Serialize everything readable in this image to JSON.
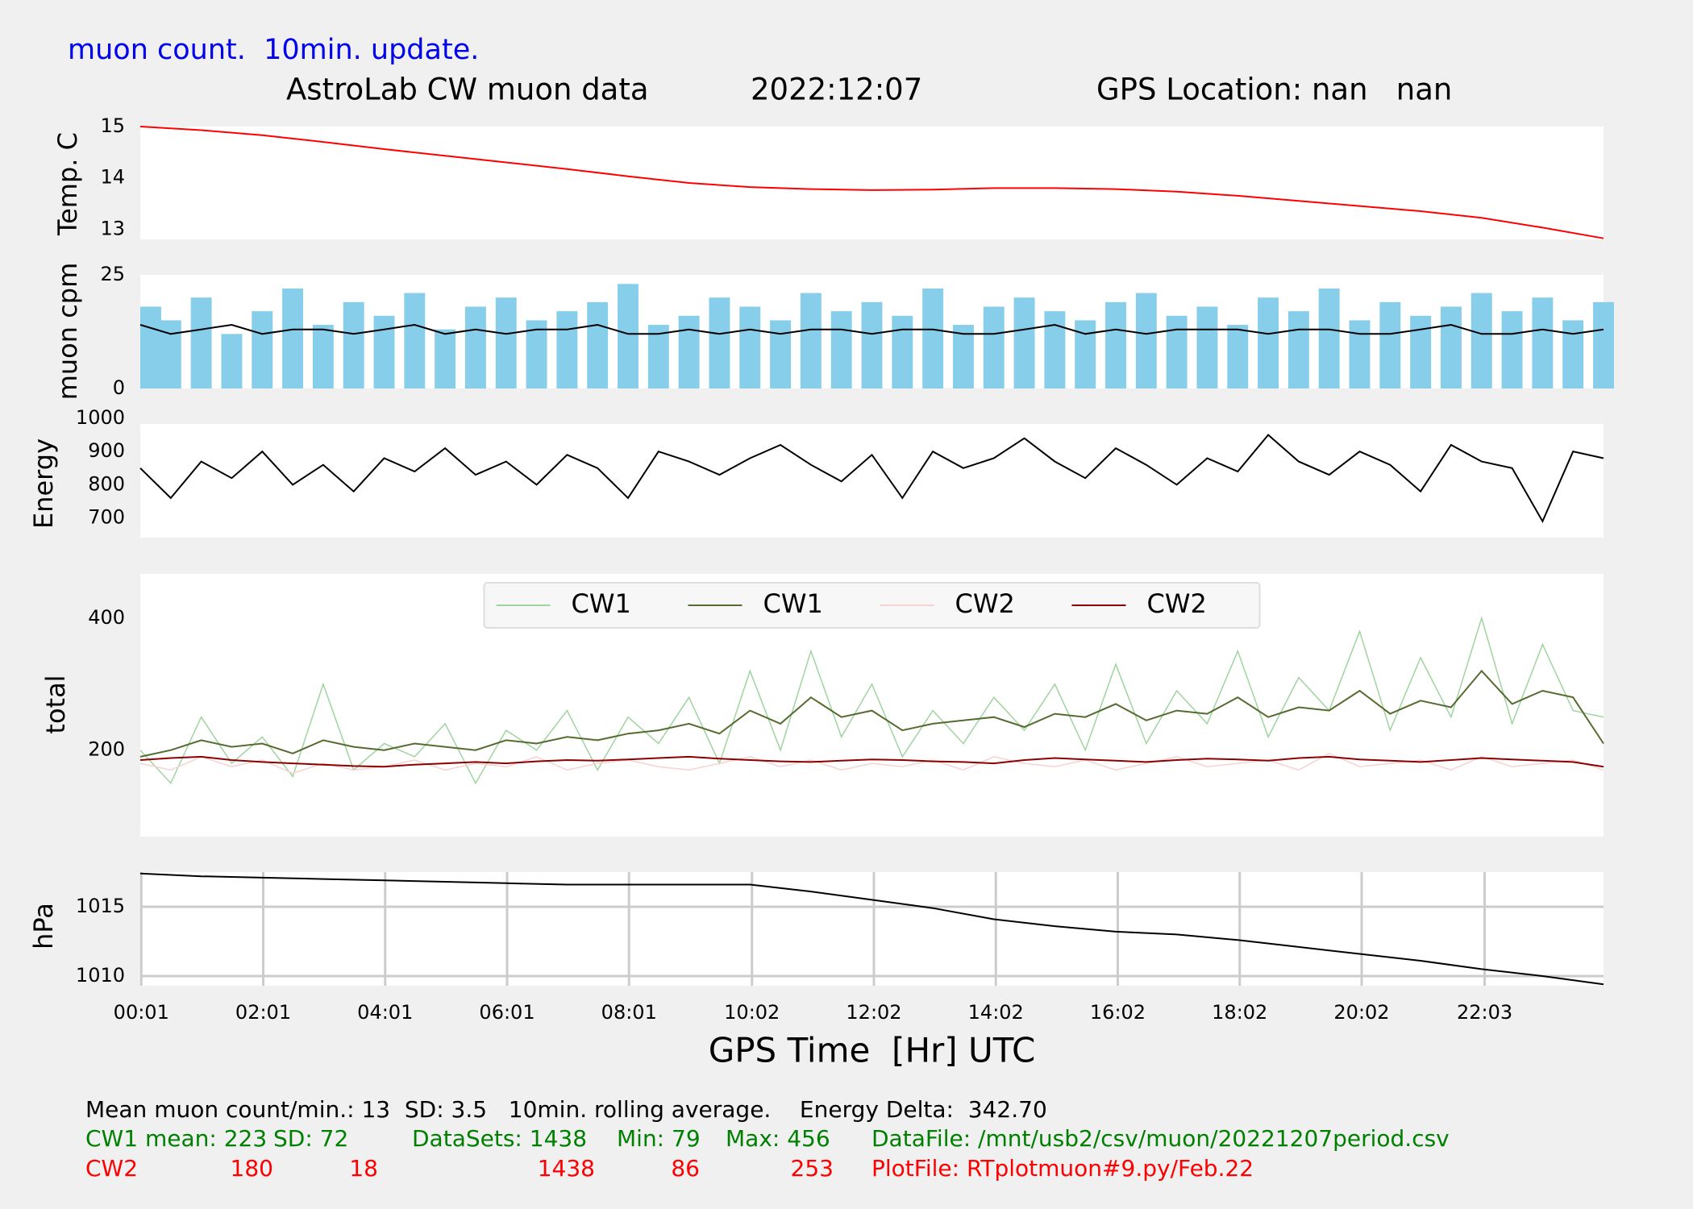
{
  "header": {
    "note": "muon count.  10min. update.",
    "title": "AstroLab CW muon data",
    "date": "2022:12:07",
    "location": "GPS Location: nan   nan"
  },
  "chart_data": [
    {
      "type": "line",
      "ylabel": "Temp. C",
      "x": [
        0,
        1,
        2,
        3,
        4,
        5,
        6,
        7,
        8,
        9,
        10,
        11,
        12,
        13,
        14,
        15,
        16,
        17,
        18,
        19,
        20,
        21,
        22,
        23,
        24
      ],
      "series": [
        {
          "name": "Temp",
          "color": "#ff0000",
          "values": [
            15.0,
            14.93,
            14.83,
            14.7,
            14.56,
            14.43,
            14.3,
            14.17,
            14.03,
            13.9,
            13.82,
            13.78,
            13.76,
            13.77,
            13.8,
            13.8,
            13.78,
            13.73,
            13.65,
            13.55,
            13.45,
            13.35,
            13.22,
            13.03,
            12.82
          ]
        }
      ],
      "xlim": [
        0,
        24
      ],
      "ylim": [
        12.8,
        15.0
      ],
      "yticks": [
        13,
        14,
        15
      ],
      "grid": false
    },
    {
      "type": "bar",
      "ylabel": "muon cpm",
      "x": [
        0,
        0.5,
        1,
        1.5,
        2,
        2.5,
        3,
        3.5,
        4,
        4.5,
        5,
        5.5,
        6,
        6.5,
        7,
        7.5,
        8,
        8.5,
        9,
        9.5,
        10,
        10.5,
        11,
        11.5,
        12,
        12.5,
        13,
        13.5,
        14,
        14.5,
        15,
        15.5,
        16,
        16.5,
        17,
        17.5,
        18,
        18.5,
        19,
        19.5,
        20,
        20.5,
        21,
        21.5,
        22,
        22.5,
        23,
        23.5,
        24
      ],
      "series": [
        {
          "name": "muon cpm",
          "type": "bar",
          "color": "#87ceeb",
          "values": [
            18,
            15,
            20,
            12,
            17,
            22,
            14,
            19,
            16,
            21,
            13,
            18,
            20,
            15,
            17,
            19,
            23,
            14,
            16,
            20,
            18,
            15,
            21,
            17,
            19,
            16,
            22,
            14,
            18,
            20,
            17,
            15,
            19,
            21,
            16,
            18,
            14,
            20,
            17,
            22,
            15,
            19,
            16,
            18,
            21,
            17,
            20,
            15,
            19
          ]
        },
        {
          "name": "10min. rolling average",
          "type": "line",
          "color": "#000000",
          "values": [
            14,
            12,
            13,
            14,
            12,
            13,
            13,
            12,
            13,
            14,
            12,
            13,
            12,
            13,
            13,
            14,
            12,
            12,
            13,
            12,
            13,
            12,
            13,
            13,
            12,
            13,
            13,
            12,
            12,
            13,
            14,
            12,
            13,
            12,
            13,
            13,
            13,
            12,
            13,
            13,
            12,
            12,
            13,
            14,
            12,
            12,
            13,
            12,
            13
          ]
        }
      ],
      "xlim": [
        0,
        24
      ],
      "ylim": [
        0,
        25
      ],
      "yticks": [
        0,
        25
      ],
      "grid": false
    },
    {
      "type": "line",
      "ylabel": "Energy",
      "x": [
        0,
        0.5,
        1,
        1.5,
        2,
        2.5,
        3,
        3.5,
        4,
        4.5,
        5,
        5.5,
        6,
        6.5,
        7,
        7.5,
        8,
        8.5,
        9,
        9.5,
        10,
        10.5,
        11,
        11.5,
        12,
        12.5,
        13,
        13.5,
        14,
        14.5,
        15,
        15.5,
        16,
        16.5,
        17,
        17.5,
        18,
        18.5,
        19,
        19.5,
        20,
        20.5,
        21,
        21.5,
        22,
        22.5,
        23,
        23.5,
        24
      ],
      "series": [
        {
          "name": "Energy",
          "color": "#000000",
          "values": [
            850,
            760,
            870,
            820,
            900,
            800,
            860,
            780,
            880,
            840,
            910,
            830,
            870,
            800,
            890,
            850,
            760,
            900,
            870,
            830,
            880,
            920,
            860,
            810,
            890,
            760,
            900,
            850,
            880,
            940,
            870,
            820,
            910,
            860,
            800,
            880,
            840,
            950,
            870,
            830,
            900,
            860,
            780,
            920,
            870,
            850,
            690,
            900,
            880
          ]
        }
      ],
      "xlim": [
        0,
        24
      ],
      "ylim": [
        641,
        983
      ],
      "yticks": [
        700,
        800,
        900,
        1000
      ],
      "grid": false
    },
    {
      "type": "line",
      "ylabel": "total",
      "legend": "upper center",
      "x": [
        0,
        0.5,
        1,
        1.5,
        2,
        2.5,
        3,
        3.5,
        4,
        4.5,
        5,
        5.5,
        6,
        6.5,
        7,
        7.5,
        8,
        8.5,
        9,
        9.5,
        10,
        10.5,
        11,
        11.5,
        12,
        12.5,
        13,
        13.5,
        14,
        14.5,
        15,
        15.5,
        16,
        16.5,
        17,
        17.5,
        18,
        18.5,
        19,
        19.5,
        20,
        20.5,
        21,
        21.5,
        22,
        22.5,
        23,
        23.5,
        24
      ],
      "series": [
        {
          "name": "CW1",
          "color": "#9fd49f",
          "values": [
            200,
            150,
            250,
            180,
            220,
            160,
            300,
            170,
            210,
            190,
            240,
            150,
            230,
            200,
            260,
            170,
            250,
            210,
            280,
            180,
            320,
            200,
            350,
            220,
            300,
            190,
            260,
            210,
            280,
            230,
            300,
            200,
            330,
            210,
            290,
            240,
            350,
            220,
            310,
            260,
            380,
            230,
            340,
            250,
            400,
            240,
            360,
            260,
            250
          ]
        },
        {
          "name": "CW1",
          "color": "#556b2f",
          "values": [
            190,
            200,
            215,
            205,
            210,
            195,
            215,
            205,
            200,
            210,
            205,
            200,
            215,
            210,
            220,
            215,
            225,
            230,
            240,
            225,
            260,
            240,
            280,
            250,
            260,
            230,
            240,
            245,
            250,
            235,
            255,
            250,
            270,
            245,
            260,
            255,
            280,
            250,
            265,
            260,
            290,
            255,
            275,
            265,
            320,
            270,
            290,
            280,
            210
          ]
        },
        {
          "name": "CW2",
          "color": "#f6d2d2",
          "values": [
            180,
            170,
            190,
            175,
            185,
            165,
            180,
            170,
            175,
            185,
            170,
            180,
            175,
            190,
            170,
            180,
            185,
            175,
            170,
            180,
            190,
            175,
            185,
            170,
            180,
            175,
            185,
            170,
            190,
            180,
            175,
            185,
            170,
            180,
            190,
            175,
            180,
            185,
            170,
            195,
            175,
            180,
            185,
            170,
            190,
            175,
            180,
            185,
            170
          ]
        },
        {
          "name": "CW2",
          "color": "#8b0000",
          "values": [
            185,
            188,
            190,
            185,
            182,
            180,
            178,
            176,
            175,
            178,
            180,
            182,
            180,
            183,
            185,
            184,
            186,
            188,
            190,
            187,
            185,
            183,
            182,
            184,
            186,
            185,
            183,
            182,
            180,
            185,
            188,
            186,
            184,
            182,
            185,
            187,
            186,
            184,
            188,
            190,
            186,
            184,
            182,
            185,
            188,
            186,
            184,
            182,
            175
          ]
        }
      ],
      "xlim": [
        0,
        24
      ],
      "ylim": [
        69,
        467
      ],
      "yticks": [
        200,
        400
      ],
      "grid": false
    },
    {
      "type": "line",
      "ylabel": "hPa",
      "xlabel": "GPS Time  [Hr] UTC",
      "x": [
        0,
        1,
        2,
        3,
        4,
        5,
        6,
        7,
        8,
        9,
        10,
        11,
        12,
        13,
        14,
        15,
        16,
        17,
        18,
        19,
        20,
        21,
        22,
        23,
        24
      ],
      "series": [
        {
          "name": "hPa",
          "color": "#000000",
          "values": [
            1017.4,
            1017.2,
            1017.1,
            1017.0,
            1016.9,
            1016.8,
            1016.7,
            1016.6,
            1016.6,
            1016.6,
            1016.6,
            1016.1,
            1015.5,
            1014.9,
            1014.1,
            1013.6,
            1013.2,
            1013.0,
            1012.6,
            1012.1,
            1011.6,
            1011.1,
            1010.5,
            1010.0,
            1009.4
          ]
        }
      ],
      "xlim": [
        0,
        24
      ],
      "ylim": [
        1009.3,
        1017.5
      ],
      "yticks": [
        1010,
        1015
      ],
      "grid": true,
      "xticks": [
        {
          "value": 0.0167,
          "label": "00:01"
        },
        {
          "value": 2.0167,
          "label": "02:01"
        },
        {
          "value": 4.0167,
          "label": "04:01"
        },
        {
          "value": 6.0167,
          "label": "06:01"
        },
        {
          "value": 8.0167,
          "label": "08:01"
        },
        {
          "value": 10.033,
          "label": "10:02"
        },
        {
          "value": 12.033,
          "label": "12:02"
        },
        {
          "value": 14.033,
          "label": "14:02"
        },
        {
          "value": 16.033,
          "label": "16:02"
        },
        {
          "value": 18.033,
          "label": "18:02"
        },
        {
          "value": 20.033,
          "label": "20:02"
        },
        {
          "value": 22.05,
          "label": "22:03"
        }
      ]
    }
  ],
  "footer": {
    "summary": "Mean muon count/min.: 13  SD: 3.5   10min. rolling average.    Energy Delta:  342.70",
    "cw1": [
      "CW1 mean: 223",
      "SD: 72",
      "DataSets: 1438",
      "Min: 79",
      "Max: 456",
      "DataFile: /mnt/usb2/csv/muon/20221207period.csv"
    ],
    "cw2": [
      "CW2",
      "180",
      "18",
      "1438",
      "86",
      "253",
      "PlotFile: RTplotmuon#9.py/Feb.22"
    ]
  }
}
